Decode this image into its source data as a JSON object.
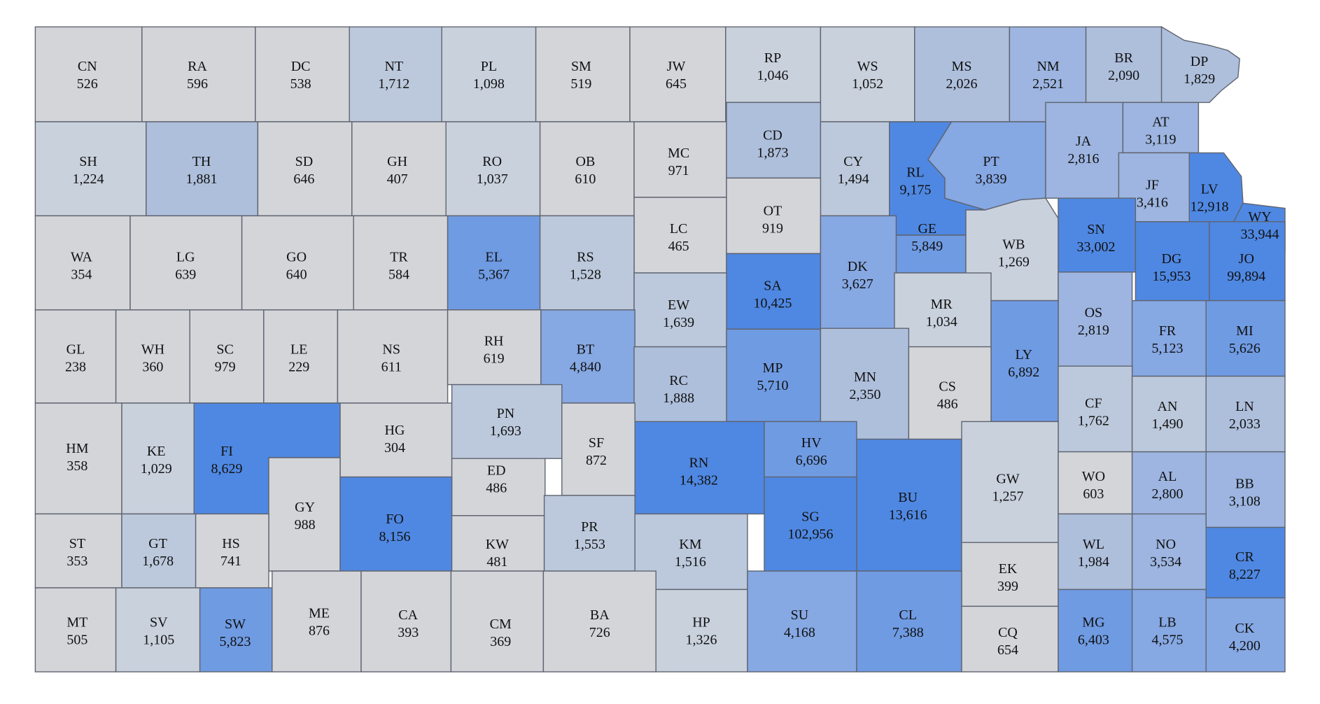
{
  "colors": {
    "v0": "#d3d5d9",
    "v1": "#c9d1dd",
    "v2": "#bcc9dc",
    "v3": "#aebfdc",
    "v4": "#9db5e0",
    "v5": "#86a8e3",
    "v6": "#6f9be3",
    "v7": "#4f88e2",
    "border": "#5f6470"
  },
  "counties": [
    {
      "code": "CN",
      "value": "526"
    },
    {
      "code": "RA",
      "value": "596"
    },
    {
      "code": "DC",
      "value": "538"
    },
    {
      "code": "NT",
      "value": "1,712"
    },
    {
      "code": "PL",
      "value": "1,098"
    },
    {
      "code": "SM",
      "value": "519"
    },
    {
      "code": "JW",
      "value": "645"
    },
    {
      "code": "RP",
      "value": "1,046"
    },
    {
      "code": "WS",
      "value": "1,052"
    },
    {
      "code": "MS",
      "value": "2,026"
    },
    {
      "code": "NM",
      "value": "2,521"
    },
    {
      "code": "BR",
      "value": "2,090"
    },
    {
      "code": "DP",
      "value": "1,829"
    },
    {
      "code": "SH",
      "value": "1,224"
    },
    {
      "code": "TH",
      "value": "1,881"
    },
    {
      "code": "SD",
      "value": "646"
    },
    {
      "code": "GH",
      "value": "407"
    },
    {
      "code": "RO",
      "value": "1,037"
    },
    {
      "code": "OB",
      "value": "610"
    },
    {
      "code": "MC",
      "value": "971"
    },
    {
      "code": "CD",
      "value": "1,873"
    },
    {
      "code": "CY",
      "value": "1,494"
    },
    {
      "code": "RL",
      "value": "9,175"
    },
    {
      "code": "PT",
      "value": "3,839"
    },
    {
      "code": "JA",
      "value": "2,816"
    },
    {
      "code": "AT",
      "value": "3,119"
    },
    {
      "code": "JF",
      "value": "3,416"
    },
    {
      "code": "LV",
      "value": "12,918"
    },
    {
      "code": "WY",
      "value": "33,944"
    },
    {
      "code": "LC",
      "value": "465"
    },
    {
      "code": "OT",
      "value": "919"
    },
    {
      "code": "GE",
      "value": "5,849"
    },
    {
      "code": "WA",
      "value": "354"
    },
    {
      "code": "LG",
      "value": "639"
    },
    {
      "code": "GO",
      "value": "640"
    },
    {
      "code": "TR",
      "value": "584"
    },
    {
      "code": "EL",
      "value": "5,367"
    },
    {
      "code": "RS",
      "value": "1,528"
    },
    {
      "code": "SA",
      "value": "10,425"
    },
    {
      "code": "DK",
      "value": "3,627"
    },
    {
      "code": "WB",
      "value": "1,269"
    },
    {
      "code": "SN",
      "value": "33,002"
    },
    {
      "code": "DG",
      "value": "15,953"
    },
    {
      "code": "JO",
      "value": "99,894"
    },
    {
      "code": "EW",
      "value": "1,639"
    },
    {
      "code": "MR",
      "value": "1,034"
    },
    {
      "code": "OS",
      "value": "2,819"
    },
    {
      "code": "GL",
      "value": "238"
    },
    {
      "code": "WH",
      "value": "360"
    },
    {
      "code": "SC",
      "value": "979"
    },
    {
      "code": "LE",
      "value": "229"
    },
    {
      "code": "NS",
      "value": "611"
    },
    {
      "code": "RH",
      "value": "619"
    },
    {
      "code": "BT",
      "value": "4,840"
    },
    {
      "code": "MP",
      "value": "5,710"
    },
    {
      "code": "LY",
      "value": "6,892"
    },
    {
      "code": "FR",
      "value": "5,123"
    },
    {
      "code": "MI",
      "value": "5,626"
    },
    {
      "code": "RC",
      "value": "1,888"
    },
    {
      "code": "MN",
      "value": "2,350"
    },
    {
      "code": "CS",
      "value": "486"
    },
    {
      "code": "CF",
      "value": "1,762"
    },
    {
      "code": "AN",
      "value": "1,490"
    },
    {
      "code": "LN",
      "value": "2,033"
    },
    {
      "code": "HM",
      "value": "358"
    },
    {
      "code": "KE",
      "value": "1,029"
    },
    {
      "code": "FI",
      "value": "8,629"
    },
    {
      "code": "HG",
      "value": "304"
    },
    {
      "code": "PN",
      "value": "1,693"
    },
    {
      "code": "SF",
      "value": "872"
    },
    {
      "code": "RN",
      "value": "14,382"
    },
    {
      "code": "HV",
      "value": "6,696"
    },
    {
      "code": "BU",
      "value": "13,616"
    },
    {
      "code": "GW",
      "value": "1,257"
    },
    {
      "code": "WO",
      "value": "603"
    },
    {
      "code": "AL",
      "value": "2,800"
    },
    {
      "code": "BB",
      "value": "3,108"
    },
    {
      "code": "GY",
      "value": "988"
    },
    {
      "code": "ED",
      "value": "486"
    },
    {
      "code": "FO",
      "value": "8,156"
    },
    {
      "code": "SG",
      "value": "102,956"
    },
    {
      "code": "ST",
      "value": "353"
    },
    {
      "code": "GT",
      "value": "1,678"
    },
    {
      "code": "HS",
      "value": "741"
    },
    {
      "code": "KW",
      "value": "481"
    },
    {
      "code": "PR",
      "value": "1,553"
    },
    {
      "code": "KM",
      "value": "1,516"
    },
    {
      "code": "EK",
      "value": "399"
    },
    {
      "code": "WL",
      "value": "1,984"
    },
    {
      "code": "NO",
      "value": "3,534"
    },
    {
      "code": "CR",
      "value": "8,227"
    },
    {
      "code": "MT",
      "value": "505"
    },
    {
      "code": "SV",
      "value": "1,105"
    },
    {
      "code": "SW",
      "value": "5,823"
    },
    {
      "code": "ME",
      "value": "876"
    },
    {
      "code": "CA",
      "value": "393"
    },
    {
      "code": "CM",
      "value": "369"
    },
    {
      "code": "BA",
      "value": "726"
    },
    {
      "code": "HP",
      "value": "1,326"
    },
    {
      "code": "SU",
      "value": "4,168"
    },
    {
      "code": "CL",
      "value": "7,388"
    },
    {
      "code": "CQ",
      "value": "654"
    },
    {
      "code": "MG",
      "value": "6,403"
    },
    {
      "code": "LB",
      "value": "4,575"
    },
    {
      "code": "CK",
      "value": "4,200"
    }
  ]
}
